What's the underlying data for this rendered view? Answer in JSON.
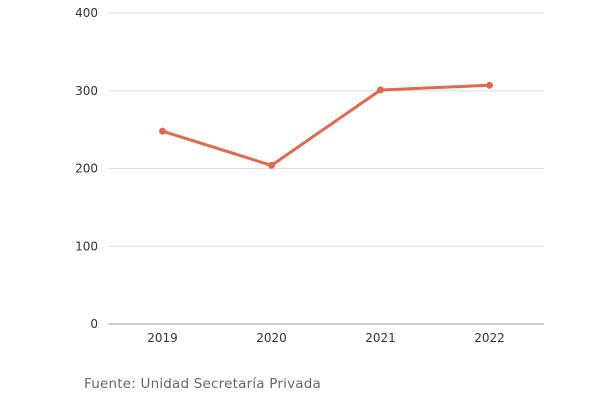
{
  "chart_data": {
    "type": "line",
    "categories": [
      "2019",
      "2020",
      "2021",
      "2022"
    ],
    "series": [
      {
        "values": [
          248,
          204,
          301,
          307
        ]
      }
    ],
    "ylim": [
      0,
      400
    ],
    "yticks": [
      "0",
      "100",
      "200",
      "300",
      "400"
    ],
    "grid": "horizontal",
    "line_color": "#e06a4e",
    "grid_color": "#dddddd",
    "axis_color": "#999999"
  },
  "source": "Fuente: Unidad Secretaría Privada"
}
